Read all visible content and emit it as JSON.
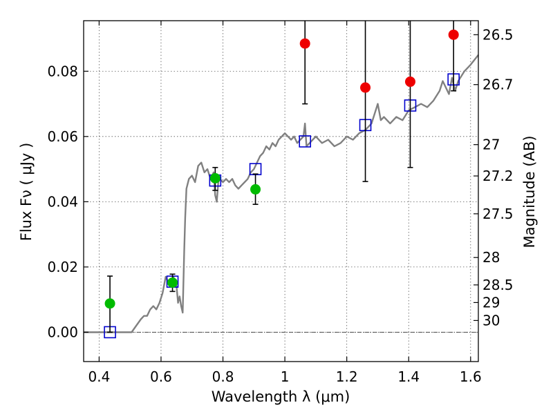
{
  "chart_data": {
    "type": "scatter",
    "xlabel": "Wavelength  λ (μm)",
    "ylabel": "Flux  Fν  ( μJy )",
    "y2label": "Magnitude (AB)",
    "xlim": [
      0.35,
      1.625
    ],
    "ylim": [
      -0.009,
      0.0955
    ],
    "x_ticks": [
      0.4,
      0.6,
      0.8,
      1.0,
      1.2,
      1.4,
      1.6
    ],
    "x_tick_labels": [
      "0.4",
      "0.6",
      "0.8",
      "1",
      "1.2",
      "1.4",
      "1.6"
    ],
    "y_ticks": [
      0.0,
      0.02,
      0.04,
      0.06,
      0.08
    ],
    "y_tick_labels": [
      "0.00",
      "0.02",
      "0.04",
      "0.06",
      "0.08"
    ],
    "mag_ticks": [
      {
        "label": "26.5",
        "flux": 0.0912
      },
      {
        "label": "26.7",
        "flux": 0.0759
      },
      {
        "label": "27",
        "flux": 0.0575
      },
      {
        "label": "27.2",
        "flux": 0.0479
      },
      {
        "label": "27.5",
        "flux": 0.0363
      },
      {
        "label": "28",
        "flux": 0.0229
      },
      {
        "label": "28.5",
        "flux": 0.0145
      },
      {
        "label": "29",
        "flux": 0.0091
      },
      {
        "label": "30",
        "flux": 0.0036
      }
    ],
    "grid": true,
    "zero_line": true,
    "colors": {
      "spectrum": "#808080",
      "model_box": "#0000cc",
      "detection": "#00bb00",
      "non_detection": "#ee0000",
      "errorbar": "#000000",
      "grid": "#555555"
    },
    "series": [
      {
        "kind": "line",
        "x": [
          0.35,
          0.4,
          0.45,
          0.48,
          0.505,
          0.52,
          0.535,
          0.545,
          0.555,
          0.565,
          0.575,
          0.585,
          0.595,
          0.605,
          0.615,
          0.62,
          0.625,
          0.63,
          0.64,
          0.65,
          0.655,
          0.66,
          0.665,
          0.67,
          0.675,
          0.678,
          0.682,
          0.69,
          0.7,
          0.71,
          0.72,
          0.73,
          0.74,
          0.75,
          0.76,
          0.77,
          0.775,
          0.78,
          0.785,
          0.79,
          0.8,
          0.81,
          0.82,
          0.83,
          0.84,
          0.85,
          0.86,
          0.87,
          0.88,
          0.89,
          0.9,
          0.91,
          0.92,
          0.93,
          0.94,
          0.95,
          0.96,
          0.97,
          0.98,
          0.99,
          1.0,
          1.01,
          1.02,
          1.03,
          1.04,
          1.05,
          1.06,
          1.065,
          1.07,
          1.08,
          1.09,
          1.1,
          1.12,
          1.14,
          1.16,
          1.18,
          1.2,
          1.22,
          1.24,
          1.26,
          1.28,
          1.29,
          1.3,
          1.31,
          1.32,
          1.34,
          1.36,
          1.38,
          1.4,
          1.42,
          1.44,
          1.46,
          1.48,
          1.5,
          1.51,
          1.52,
          1.53,
          1.54,
          1.55,
          1.56,
          1.58,
          1.6,
          1.625
        ],
        "y": [
          0.0,
          0.0,
          0.0,
          0.0,
          0.0,
          0.002,
          0.004,
          0.005,
          0.005,
          0.007,
          0.008,
          0.007,
          0.009,
          0.012,
          0.017,
          0.016,
          0.015,
          0.015,
          0.017,
          0.014,
          0.009,
          0.011,
          0.008,
          0.006,
          0.025,
          0.035,
          0.044,
          0.047,
          0.048,
          0.046,
          0.051,
          0.052,
          0.049,
          0.05,
          0.047,
          0.049,
          0.042,
          0.04,
          0.046,
          0.047,
          0.046,
          0.047,
          0.046,
          0.047,
          0.045,
          0.044,
          0.045,
          0.046,
          0.047,
          0.049,
          0.05,
          0.052,
          0.054,
          0.055,
          0.057,
          0.056,
          0.058,
          0.057,
          0.059,
          0.06,
          0.061,
          0.06,
          0.059,
          0.06,
          0.058,
          0.059,
          0.06,
          0.064,
          0.057,
          0.058,
          0.059,
          0.06,
          0.058,
          0.059,
          0.057,
          0.058,
          0.06,
          0.059,
          0.061,
          0.062,
          0.064,
          0.067,
          0.07,
          0.065,
          0.066,
          0.064,
          0.066,
          0.065,
          0.068,
          0.069,
          0.07,
          0.069,
          0.071,
          0.074,
          0.077,
          0.075,
          0.073,
          0.078,
          0.074,
          0.077,
          0.08,
          0.082,
          0.085
        ]
      },
      {
        "kind": "box",
        "x": [
          0.435,
          0.637,
          0.775,
          0.905,
          1.065,
          1.26,
          1.405,
          1.545
        ],
        "y": [
          0.0,
          0.0155,
          0.0465,
          0.05,
          0.0585,
          0.0635,
          0.0695,
          0.0775
        ]
      },
      {
        "kind": "point_err",
        "color_key": "detection",
        "x": [
          0.435,
          0.637,
          0.775,
          0.905
        ],
        "y": [
          0.0088,
          0.0152,
          0.0472,
          0.0438
        ],
        "ylo": [
          0.0,
          0.0125,
          0.0435,
          0.0392
        ],
        "yhi": [
          0.0172,
          0.0178,
          0.0505,
          0.0485
        ]
      },
      {
        "kind": "point_err",
        "color_key": "non_detection",
        "x": [
          1.065,
          1.26,
          1.405,
          1.545
        ],
        "y": [
          0.0885,
          0.075,
          0.0768,
          0.0912
        ],
        "ylo": [
          0.07,
          0.0462,
          0.0505,
          0.074
        ],
        "yhi": [
          0.0955,
          0.0955,
          0.0955,
          0.0955
        ]
      }
    ]
  }
}
